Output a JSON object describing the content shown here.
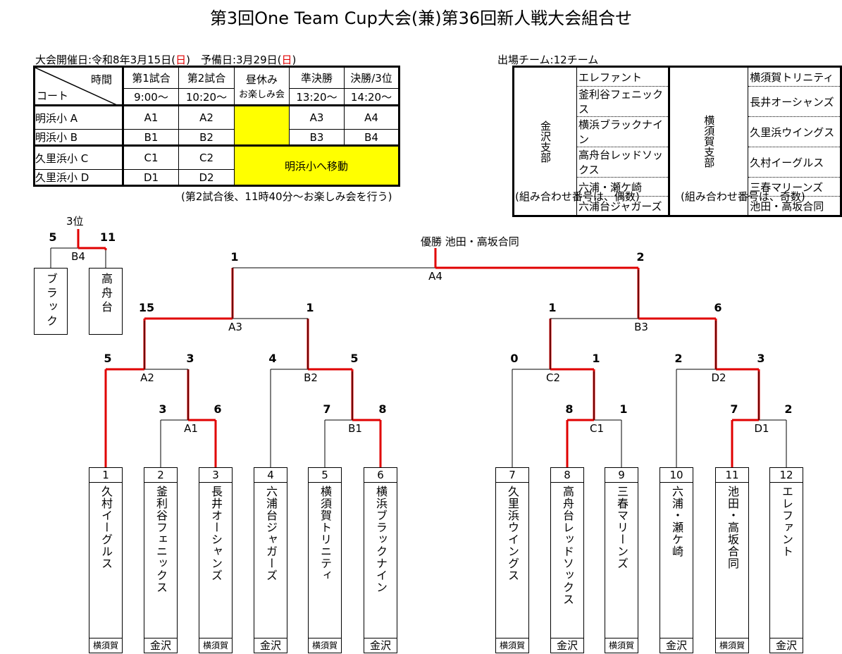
{
  "title": "第3回One Team Cup大会(兼)第36回新人戦大会組合せ",
  "schedule": {
    "date_text": "大会開催日:令和8年3月15日(",
    "date_day": "日",
    "date_close": ")　予備日:3月29日(",
    "reserve_day": "日",
    "reserve_close": ")",
    "corner_time": "時間",
    "corner_court": "コート",
    "headers": [
      "第1試合",
      "第2試合",
      "昼休み",
      "準決勝",
      "決勝/3位"
    ],
    "lunch_sub": "お楽しみ会",
    "times": [
      "9:00〜",
      "10:20〜",
      "13:20〜",
      "14:20〜"
    ],
    "rows": [
      {
        "court": "明浜小 A",
        "games": [
          "A1",
          "A2",
          "A3",
          "A4"
        ]
      },
      {
        "court": "明浜小 B",
        "games": [
          "B1",
          "B2",
          "B3",
          "B4"
        ]
      },
      {
        "court": "久里浜小 C",
        "games": [
          "C1",
          "C2"
        ]
      },
      {
        "court": "久里浜小 D",
        "games": [
          "D1",
          "D2"
        ]
      }
    ],
    "move_text": "明浜小へ移動",
    "note": "(第2試合後、11時40分〜お楽しみ会を行う)"
  },
  "teams_table": {
    "title": "出場チーム:12チーム",
    "branch_left": "金沢支部",
    "branch_right": "横須賀支部",
    "left": [
      "エレファント",
      "釜利谷フェニックス",
      "横浜ブラックナイン",
      "高舟台レッドソックス",
      "六浦・瀬ケ崎",
      "六浦台ジャガーズ"
    ],
    "right": [
      "横須賀トリニティ",
      "長井オーシャンズ",
      "久里浜ウイングス",
      "久村イーグルス",
      "三春マリーンズ",
      "池田・高坂合同"
    ],
    "note_left": "(組み合わせ番号は、偶数)",
    "note_right": "(組み合わせ番号は、奇数)"
  },
  "bracket": {
    "champion": "優勝 池田・高坂合同",
    "third_label": "3位",
    "third_teams": [
      "ブラック",
      "高舟台"
    ],
    "teams": [
      {
        "no": "1",
        "name": "久村イーグルス",
        "branch": "横須賀"
      },
      {
        "no": "2",
        "name": "釜利谷フェニックス",
        "branch": "金沢"
      },
      {
        "no": "3",
        "name": "長井オーシャンズ",
        "branch": "横須賀"
      },
      {
        "no": "4",
        "name": "六浦台ジャガーズ",
        "branch": "金沢"
      },
      {
        "no": "5",
        "name": "横須賀トリニティ",
        "branch": "横須賀"
      },
      {
        "no": "6",
        "name": "横浜ブラックナイン",
        "branch": "金沢"
      },
      {
        "no": "7",
        "name": "久里浜ウイングス",
        "branch": "横須賀"
      },
      {
        "no": "8",
        "name": "高舟台レッドソックス",
        "branch": "金沢"
      },
      {
        "no": "9",
        "name": "三春マリーンズ",
        "branch": "横須賀"
      },
      {
        "no": "10",
        "name": "六浦・瀬ケ崎",
        "branch": "金沢"
      },
      {
        "no": "11",
        "name": "池田・高坂合同",
        "branch": "横須賀"
      },
      {
        "no": "12",
        "name": "エレファント",
        "branch": "金沢"
      }
    ],
    "matches": [
      {
        "id": "A1",
        "scores": [
          "3",
          "6"
        ],
        "winner": 1
      },
      {
        "id": "A2",
        "scores": [
          "5",
          "3"
        ],
        "winner": 0
      },
      {
        "id": "B1",
        "scores": [
          "7",
          "8"
        ],
        "winner": 1
      },
      {
        "id": "B2",
        "scores": [
          "4",
          "5"
        ],
        "winner": 1
      },
      {
        "id": "A3",
        "scores": [
          "15",
          "1"
        ],
        "winner": 0
      },
      {
        "id": "C1",
        "scores": [
          "8",
          "1"
        ],
        "winner": 0
      },
      {
        "id": "C2",
        "scores": [
          "0",
          "1"
        ],
        "winner": 1
      },
      {
        "id": "D1",
        "scores": [
          "7",
          "2"
        ],
        "winner": 0
      },
      {
        "id": "D2",
        "scores": [
          "2",
          "3"
        ],
        "winner": 1
      },
      {
        "id": "B3",
        "scores": [
          "1",
          "6"
        ],
        "winner": 1
      },
      {
        "id": "A4",
        "scores": [
          "1",
          "2"
        ],
        "winner": 1
      },
      {
        "id": "B4",
        "scores": [
          "5",
          "11"
        ],
        "winner": 1
      }
    ]
  },
  "colors": {
    "win_line": "#e00000",
    "highlight": "#ffff00",
    "holiday": "#e00000"
  }
}
